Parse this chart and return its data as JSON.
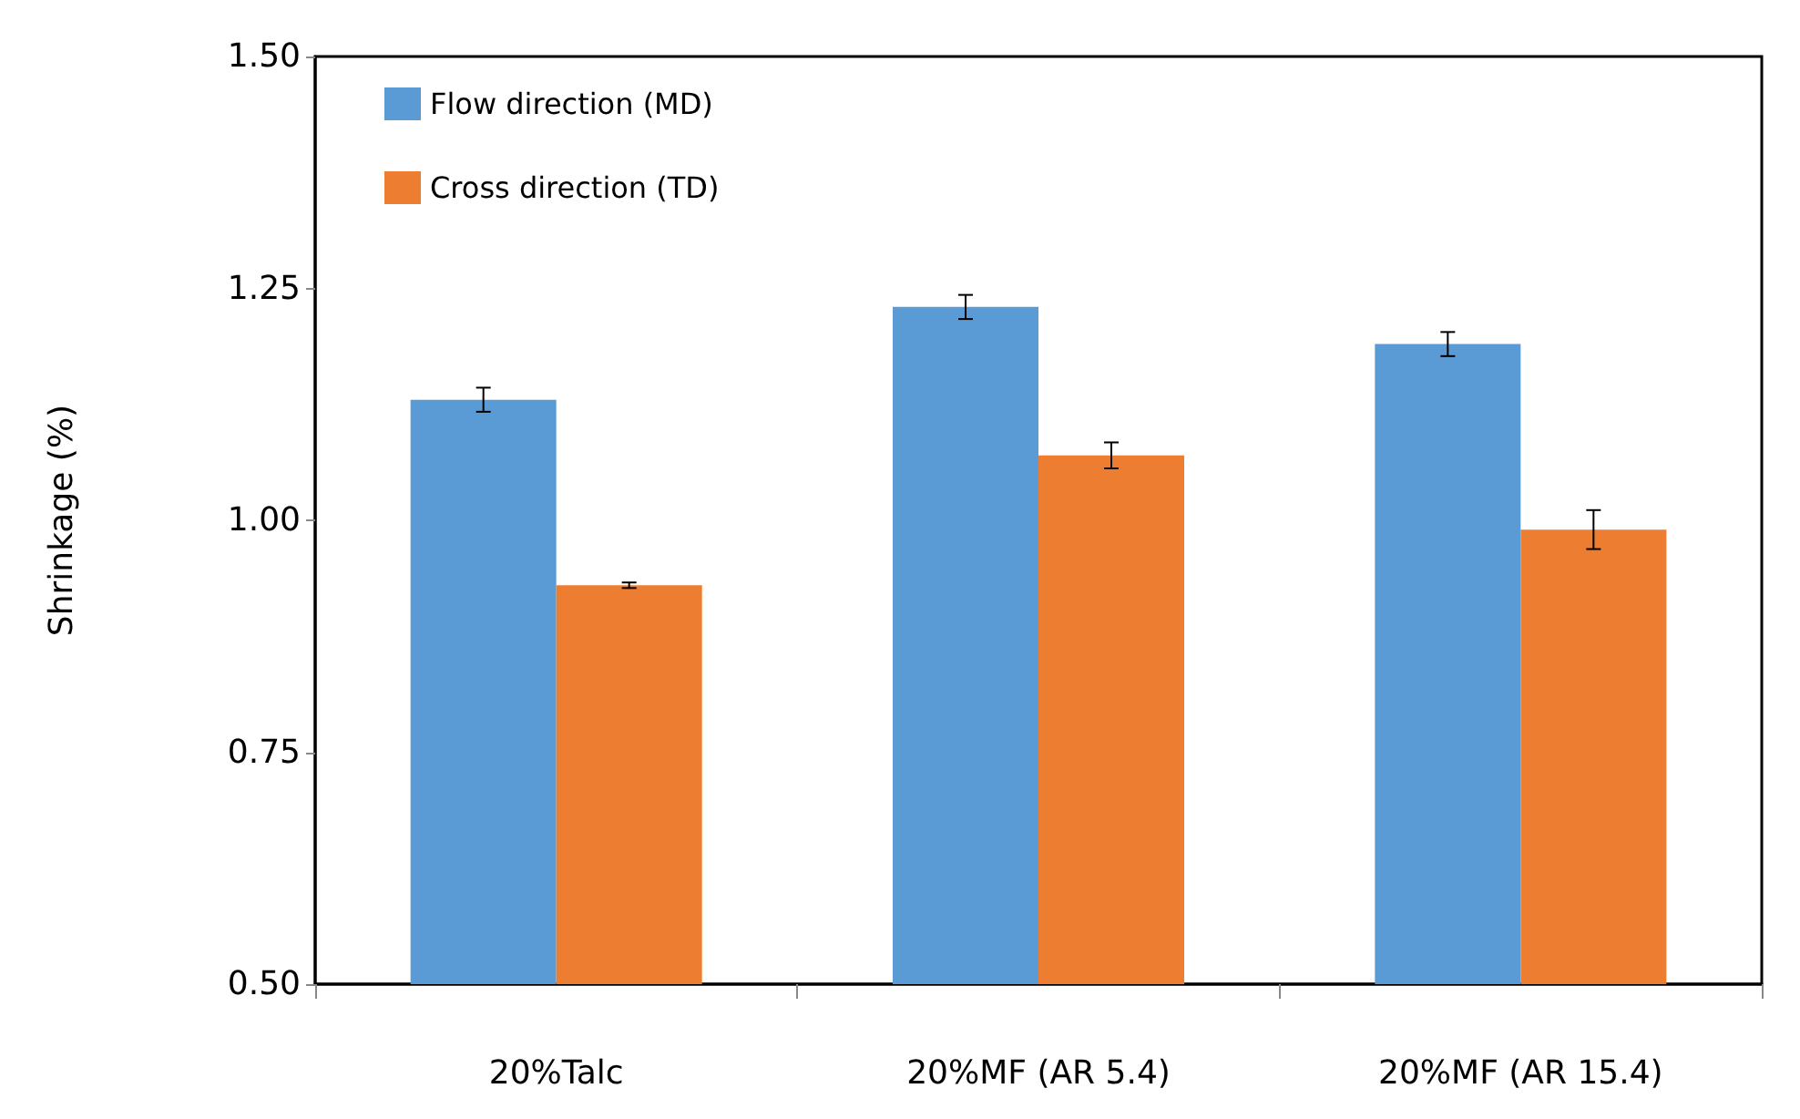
{
  "chart_data": {
    "type": "bar",
    "ylabel": "Shrinkage (%)",
    "categories": [
      "20%Talc",
      "20%MF (AR 5.4)",
      "20%MF (AR 15.4)"
    ],
    "series": [
      {
        "name": "Flow direction (MD)",
        "color": "#5b9bd5",
        "values": [
          1.13,
          1.23,
          1.19
        ],
        "errors": [
          0.013,
          0.013,
          0.013
        ]
      },
      {
        "name": "Cross direction (TD)",
        "color": "#ed7d31",
        "values": [
          0.93,
          1.07,
          0.99
        ],
        "errors": [
          0.003,
          0.014,
          0.021
        ]
      }
    ],
    "ylim": [
      0.5,
      1.5
    ],
    "yticks": [
      {
        "value": 0.5,
        "label": "0.50"
      },
      0.75,
      {
        "value": 1,
        "label": "1.00"
      },
      1.25,
      {
        "value": 1.5,
        "label": "1.50"
      }
    ],
    "grid": false,
    "legend": "top left"
  }
}
